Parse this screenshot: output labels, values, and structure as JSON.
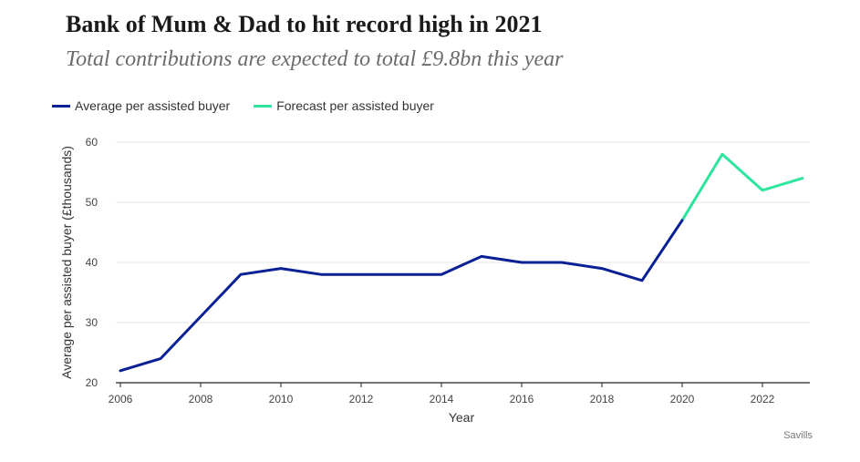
{
  "title": "Bank of Mum & Dad to hit record high in 2021",
  "subtitle": "Total contributions are expected to total £9.8bn this year",
  "source": "Savills",
  "colors": {
    "average": "#0a2196",
    "forecast": "#2ee59d"
  },
  "chart_data": {
    "type": "line",
    "xlabel": "Year",
    "ylabel": "Average per assisted buyer (£thousands)",
    "xlim": [
      2006,
      2023
    ],
    "ylim": [
      20,
      60
    ],
    "x_ticks": [
      "2006",
      "2008",
      "2010",
      "2012",
      "2014",
      "2016",
      "2018",
      "2020",
      "2022"
    ],
    "y_ticks": [
      "20",
      "30",
      "40",
      "50",
      "60"
    ],
    "legend_position": "top-left",
    "grid": "horizontal",
    "series": [
      {
        "name": "Average per assisted buyer",
        "x": [
          2006,
          2007,
          2008,
          2009,
          2010,
          2011,
          2012,
          2013,
          2014,
          2015,
          2016,
          2017,
          2018,
          2019,
          2020
        ],
        "y": [
          22,
          24,
          31,
          38,
          39,
          38,
          38,
          38,
          38,
          41,
          40,
          40,
          39,
          37,
          47
        ]
      },
      {
        "name": "Forecast per assisted buyer",
        "x": [
          2020,
          2021,
          2022,
          2023
        ],
        "y": [
          47,
          58,
          52,
          54
        ]
      }
    ]
  }
}
